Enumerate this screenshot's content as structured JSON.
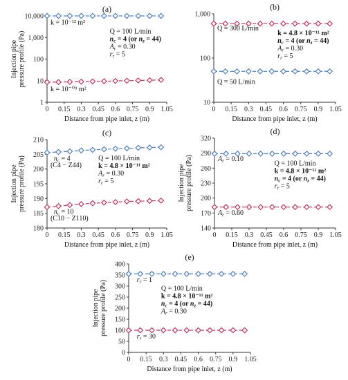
{
  "chart_data": [
    {
      "panel": "(a)",
      "type": "line",
      "ylabel": [
        "Injection pipe",
        "pressure profile (Pa)"
      ],
      "xlabel": "Distance from pipe inlet, z (m)",
      "ylog": true,
      "ylim": [
        1,
        10000
      ],
      "yticks": [
        1,
        10,
        100,
        1000,
        10000
      ],
      "ytick_labels": [
        "1",
        "10",
        "100",
        "1,000",
        "10,000"
      ],
      "xlim": [
        0,
        1.05
      ],
      "xticks": [
        0,
        0.15,
        0.3,
        0.45,
        0.6,
        0.75,
        0.9,
        1.05
      ],
      "xtick_labels": [
        "0",
        "0.15",
        "0.3",
        "0.45",
        "0.6",
        "0.75",
        "0.9",
        "1.05"
      ],
      "x": [
        0,
        0.1,
        0.2,
        0.3,
        0.4,
        0.5,
        0.6,
        0.7,
        0.8,
        0.9,
        1.0
      ],
      "series": [
        {
          "name": "k = 10⁻¹² m²",
          "color": "#4f81bd",
          "values": [
            10000,
            10000,
            10000,
            10000,
            10000,
            10000,
            10000,
            10000,
            10000,
            10000,
            10000
          ]
        },
        {
          "name": "k = 10⁻⁰⁹ m²",
          "color": "#c0365f",
          "values": [
            8.5,
            8.6,
            8.8,
            9.0,
            9.2,
            9.4,
            9.7,
            10.0,
            10.2,
            10.5,
            10.9
          ]
        }
      ],
      "labels": [
        {
          "text": "k = 10⁻¹² m²",
          "color": "#4f81bd",
          "x": 0.03,
          "y": 4000
        },
        {
          "text": "k = 10⁻⁰⁹ m²",
          "color": "#c0365f",
          "x": 0.03,
          "y": 3.2
        }
      ],
      "annotation": {
        "x": 0.55,
        "y": 1500,
        "lines": [
          "Q = 100 L/min",
          "nc = 4 (or nz = 44)",
          "Ar = 0.30",
          "rr = 5"
        ]
      }
    },
    {
      "panel": "(b)",
      "type": "line",
      "ylabel": [],
      "xlabel": "Distance from pipe inlet, z (m)",
      "ylog": true,
      "ylim": [
        10,
        1000
      ],
      "yticks": [
        10,
        100,
        1000
      ],
      "ytick_labels": [
        "10",
        "100",
        "1,000"
      ],
      "xlim": [
        0,
        1.05
      ],
      "xticks": [
        0,
        0.15,
        0.3,
        0.45,
        0.6,
        0.75,
        0.9,
        1.05
      ],
      "xtick_labels": [
        "0",
        "0.15",
        "0.3",
        "0.45",
        "0.6",
        "0.75",
        "0.9",
        "1.05"
      ],
      "x": [
        0,
        0.1,
        0.2,
        0.3,
        0.4,
        0.5,
        0.6,
        0.7,
        0.8,
        0.9,
        1.0
      ],
      "series": [
        {
          "name": "Q = 300 L/min",
          "color": "#c0365f",
          "values": [
            600,
            600,
            600,
            600,
            600,
            600,
            600,
            600,
            600,
            600,
            600
          ]
        },
        {
          "name": "Q = 50 L/min",
          "color": "#4f81bd",
          "values": [
            50,
            50,
            50,
            50,
            50,
            50,
            50,
            50,
            50,
            50,
            50
          ]
        }
      ],
      "labels": [
        {
          "text": "Q = 300 L/min",
          "color": "#c0365f",
          "x": 0.03,
          "y": 420
        },
        {
          "text": "Q = 50 L/min",
          "color": "#4f81bd",
          "x": 0.03,
          "y": 26
        }
      ],
      "annotation": {
        "x": 0.55,
        "y": 330,
        "lines": [
          "k = 4.8 × 10⁻¹¹ m²",
          "nc = 4 (or nz = 44)",
          "Ar = 0.30",
          "rr = 5"
        ]
      }
    },
    {
      "panel": "(c)",
      "type": "line",
      "ylabel": [
        "Injection pipe",
        "pressure profile (Pa)"
      ],
      "xlabel": "Distance from pipe inlet, z (m)",
      "ylog": false,
      "ylim": [
        180,
        210
      ],
      "yticks": [
        180,
        185,
        190,
        195,
        200,
        205,
        210
      ],
      "ytick_labels": [
        "180",
        "185",
        "190",
        "195",
        "200",
        "205",
        "210"
      ],
      "xlim": [
        0,
        1.05
      ],
      "xticks": [
        0,
        0.15,
        0.3,
        0.45,
        0.6,
        0.75,
        0.9,
        1.05
      ],
      "xtick_labels": [
        "0",
        "0.15",
        "0.3",
        "0.45",
        "0.6",
        "0.75",
        "0.9",
        "1.05"
      ],
      "x": [
        0,
        0.1,
        0.2,
        0.3,
        0.4,
        0.5,
        0.6,
        0.7,
        0.8,
        0.9,
        1.0
      ],
      "series": [
        {
          "name": "nc = 4 (C4 − Z44)",
          "color": "#4f81bd",
          "values": [
            205.6,
            205.8,
            206.0,
            206.3,
            206.5,
            206.7,
            206.9,
            207.0,
            207.2,
            207.3,
            207.4
          ]
        },
        {
          "name": "nc = 10 (C10 − Z110)",
          "color": "#c0365f",
          "values": [
            187.1,
            187.4,
            187.8,
            188.1,
            188.4,
            188.6,
            188.8,
            189.0,
            189.1,
            189.2,
            189.3
          ]
        }
      ],
      "labels": [
        {
          "text": "nc = 4",
          "color": "#4f81bd",
          "x": 0.06,
          "y": 202.8
        },
        {
          "text": "(C4 − Z44)",
          "color": "#4f81bd",
          "x": 0.03,
          "y": 200.6
        },
        {
          "text": "nc = 10",
          "color": "#c0365f",
          "x": 0.06,
          "y": 184.8
        },
        {
          "text": "(C10 − Z110)",
          "color": "#c0365f",
          "x": 0.03,
          "y": 182.6
        }
      ],
      "annotation": {
        "x": 0.45,
        "y": 203.0,
        "lines": [
          "Q = 100 L/min",
          "k = 4.8 × 10⁻¹¹ m²",
          "Ar = 0.30",
          "rr = 5"
        ]
      }
    },
    {
      "panel": "(d)",
      "type": "line",
      "ylabel": [
        "Injection pipe",
        "pressure profile (Pa)"
      ],
      "xlabel": "Distance from pipe inlet, z (m)",
      "ylog": false,
      "ylim": [
        140,
        320
      ],
      "yticks": [
        140,
        170,
        200,
        230,
        260,
        290,
        320
      ],
      "ytick_labels": [
        "140",
        "170",
        "200",
        "230",
        "260",
        "290",
        "320"
      ],
      "xlim": [
        0,
        1.05
      ],
      "xticks": [
        0,
        0.15,
        0.3,
        0.45,
        0.6,
        0.75,
        0.9,
        1.05
      ],
      "xtick_labels": [
        "0",
        "0.15",
        "0.3",
        "0.45",
        "0.6",
        "0.75",
        "0.9",
        "1.05"
      ],
      "x": [
        0,
        0.1,
        0.2,
        0.3,
        0.4,
        0.5,
        0.6,
        0.7,
        0.8,
        0.9,
        1.0
      ],
      "series": [
        {
          "name": "Ar = 0.10",
          "color": "#4f81bd",
          "values": [
            289,
            289,
            289,
            289,
            289,
            289,
            289,
            289,
            289,
            289,
            289
          ]
        },
        {
          "name": "Ar = 0.60",
          "color": "#c0365f",
          "values": [
            182,
            182,
            182,
            182,
            182,
            182,
            182,
            182,
            182,
            182,
            182
          ]
        }
      ],
      "labels": [
        {
          "text": "Ar = 0.10",
          "color": "#4f81bd",
          "x": 0.03,
          "y": 274
        },
        {
          "text": "Ar = 0.60",
          "color": "#c0365f",
          "x": 0.03,
          "y": 166
        }
      ],
      "annotation": {
        "x": 0.52,
        "y": 265,
        "lines": [
          "Q = 100 L/min",
          "k = 4.8 × 10⁻¹¹ m²",
          "nc = 4 (or nz = 44)",
          "rr = 5"
        ]
      }
    },
    {
      "panel": "(e)",
      "type": "line",
      "ylabel": [
        "Injection pipe",
        "pressure profile (Pa)"
      ],
      "xlabel": "Distance from pipe inlet, z (m)",
      "ylog": false,
      "ylim": [
        0,
        400
      ],
      "yticks": [
        0,
        50,
        100,
        150,
        200,
        250,
        300,
        350,
        400
      ],
      "ytick_labels": [
        "0",
        "50",
        "100",
        "150",
        "200",
        "250",
        "300",
        "350",
        "400"
      ],
      "xlim": [
        0,
        1.05
      ],
      "xticks": [
        0,
        0.15,
        0.3,
        0.45,
        0.6,
        0.75,
        0.9,
        1.05
      ],
      "xtick_labels": [
        "0",
        "0.15",
        "0.3",
        "0.45",
        "0.6",
        "0.75",
        "0.9",
        "1.05"
      ],
      "x": [
        0,
        0.1,
        0.2,
        0.3,
        0.4,
        0.5,
        0.6,
        0.7,
        0.8,
        0.9,
        1.0
      ],
      "series": [
        {
          "name": "rr = 1",
          "color": "#4f81bd",
          "values": [
            355,
            355,
            355,
            355,
            355,
            355,
            355,
            355,
            355,
            355,
            355
          ]
        },
        {
          "name": "rr = 30",
          "color": "#c0365f",
          "values": [
            100,
            100,
            100,
            100,
            100,
            100,
            100,
            100,
            100,
            100,
            100
          ]
        }
      ],
      "labels": [
        {
          "text": "rr = 1",
          "color": "#4f81bd",
          "x": 0.07,
          "y": 318
        },
        {
          "text": "rr = 30",
          "color": "#c0365f",
          "x": 0.07,
          "y": 62
        }
      ],
      "annotation": {
        "x": 0.28,
        "y": 280,
        "lines": [
          "Q = 100 L/min",
          "k = 4.8 × 10⁻¹¹ m²",
          "nc = 4 (or nz = 44)",
          "Ar = 0.30"
        ]
      }
    }
  ]
}
